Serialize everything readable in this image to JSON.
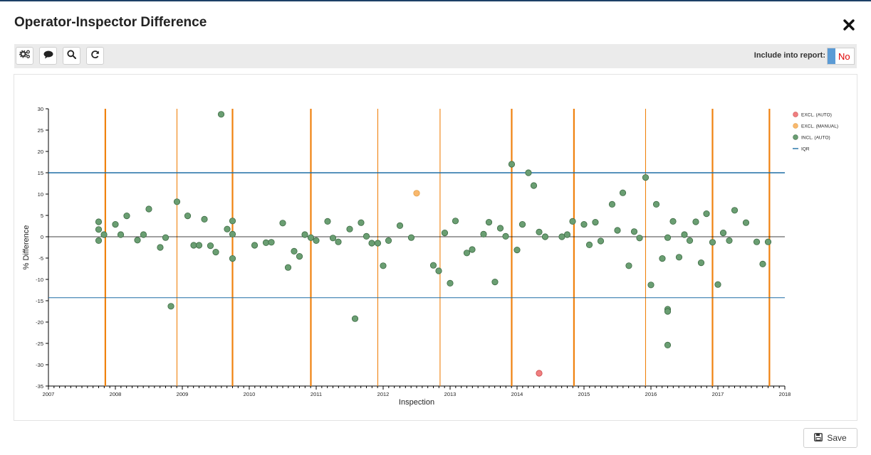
{
  "dialog": {
    "title": "Operator-Inspector Difference",
    "close_icon": "close-icon"
  },
  "toolbar": {
    "buttons": [
      {
        "icon": "settings-icon"
      },
      {
        "icon": "comment-icon"
      },
      {
        "icon": "search-icon"
      },
      {
        "icon": "refresh-icon"
      }
    ],
    "report_label": "Include into report:",
    "report_value": "No"
  },
  "footer": {
    "save_label": "Save",
    "save_icon": "floppy-disk-icon"
  },
  "colors": {
    "excl_auto": "#f07f80",
    "excl_manual": "#f9b86d",
    "incl_auto": "#6a9e72",
    "iqr": "#1f6ea5",
    "vline": "#f0820f"
  },
  "chart_data": {
    "type": "scatter",
    "xlabel": "Inspection",
    "ylabel": "% Difference",
    "xlim": [
      2007,
      2018
    ],
    "ylim": [
      -35,
      30
    ],
    "x_ticks": [
      "2007",
      "2008",
      "2009",
      "2010",
      "2011",
      "2012",
      "2013",
      "2014",
      "2015",
      "2016",
      "2017",
      "2018"
    ],
    "y_ticks": [
      30,
      25,
      20,
      15,
      10,
      5,
      0,
      -5,
      -10,
      -15,
      -20,
      -25,
      -30,
      -35
    ],
    "iqr": {
      "upper": 15,
      "lower": -14.3
    },
    "vertical_lines": [
      {
        "x": 2007.85,
        "weight": "thick"
      },
      {
        "x": 2008.92,
        "weight": "thin"
      },
      {
        "x": 2009.75,
        "weight": "thick"
      },
      {
        "x": 2010.92,
        "weight": "thick"
      },
      {
        "x": 2011.92,
        "weight": "thin"
      },
      {
        "x": 2012.85,
        "weight": "thin"
      },
      {
        "x": 2013.92,
        "weight": "thick"
      },
      {
        "x": 2014.85,
        "weight": "thick"
      },
      {
        "x": 2015.92,
        "weight": "thin"
      },
      {
        "x": 2016.92,
        "weight": "thick"
      },
      {
        "x": 2017.77,
        "weight": "thick"
      }
    ],
    "legend_position": "top-right",
    "series": [
      {
        "name": "EXCL. (AUTO)",
        "points": [
          [
            2014.33,
            -32
          ]
        ]
      },
      {
        "name": "EXCL. (MANUAL)",
        "points": [
          [
            2012.5,
            10.2
          ]
        ]
      },
      {
        "name": "INCL. (AUTO)",
        "points": [
          [
            2007.75,
            3.5
          ],
          [
            2007.75,
            1.7
          ],
          [
            2007.75,
            -0.9
          ],
          [
            2007.83,
            0.5
          ],
          [
            2008.0,
            2.9
          ],
          [
            2008.08,
            0.5
          ],
          [
            2008.17,
            4.9
          ],
          [
            2008.33,
            -0.8
          ],
          [
            2008.42,
            0.5
          ],
          [
            2008.5,
            6.5
          ],
          [
            2008.67,
            -2.5
          ],
          [
            2008.75,
            -0.2
          ],
          [
            2008.83,
            -16.3
          ],
          [
            2008.92,
            8.2
          ],
          [
            2009.08,
            4.9
          ],
          [
            2009.17,
            -2.0
          ],
          [
            2009.25,
            -2.0
          ],
          [
            2009.33,
            4.1
          ],
          [
            2009.42,
            -2.1
          ],
          [
            2009.5,
            -3.6
          ],
          [
            2009.58,
            28.7
          ],
          [
            2009.67,
            1.8
          ],
          [
            2009.75,
            3.7
          ],
          [
            2009.75,
            0.6
          ],
          [
            2009.75,
            -5.1
          ],
          [
            2010.08,
            -2.0
          ],
          [
            2010.25,
            -1.4
          ],
          [
            2010.33,
            -1.3
          ],
          [
            2010.5,
            3.2
          ],
          [
            2010.58,
            -7.2
          ],
          [
            2010.67,
            -3.4
          ],
          [
            2010.75,
            -4.6
          ],
          [
            2010.83,
            0.5
          ],
          [
            2010.92,
            -0.2
          ],
          [
            2011.0,
            -0.9
          ],
          [
            2011.17,
            3.6
          ],
          [
            2011.25,
            -0.3
          ],
          [
            2011.33,
            -1.2
          ],
          [
            2011.5,
            1.8
          ],
          [
            2011.58,
            -19.2
          ],
          [
            2011.67,
            3.3
          ],
          [
            2011.75,
            0.1
          ],
          [
            2011.83,
            -1.5
          ],
          [
            2011.92,
            -1.5
          ],
          [
            2012.0,
            -6.8
          ],
          [
            2012.08,
            -0.9
          ],
          [
            2012.25,
            2.6
          ],
          [
            2012.42,
            -0.2
          ],
          [
            2012.75,
            -6.7
          ],
          [
            2012.83,
            -8.0
          ],
          [
            2012.92,
            0.9
          ],
          [
            2013.0,
            -10.9
          ],
          [
            2013.08,
            3.7
          ],
          [
            2013.25,
            -3.8
          ],
          [
            2013.33,
            -3.0
          ],
          [
            2013.5,
            0.6
          ],
          [
            2013.58,
            3.4
          ],
          [
            2013.67,
            -10.6
          ],
          [
            2013.75,
            2.0
          ],
          [
            2013.83,
            0.1
          ],
          [
            2013.92,
            17.0
          ],
          [
            2014.0,
            -3.1
          ],
          [
            2014.08,
            2.9
          ],
          [
            2014.17,
            15.0
          ],
          [
            2014.25,
            12.0
          ],
          [
            2014.33,
            1.1
          ],
          [
            2014.42,
            0.0
          ],
          [
            2014.67,
            0.0
          ],
          [
            2014.75,
            0.5
          ],
          [
            2014.83,
            3.6
          ],
          [
            2015.0,
            2.9
          ],
          [
            2015.08,
            -1.9
          ],
          [
            2015.17,
            3.4
          ],
          [
            2015.25,
            -1.0
          ],
          [
            2015.42,
            7.6
          ],
          [
            2015.58,
            10.3
          ],
          [
            2015.5,
            1.5
          ],
          [
            2015.67,
            -6.8
          ],
          [
            2015.75,
            1.2
          ],
          [
            2015.83,
            -0.3
          ],
          [
            2015.92,
            13.9
          ],
          [
            2016.0,
            -11.3
          ],
          [
            2016.08,
            7.6
          ],
          [
            2016.17,
            -5.1
          ],
          [
            2016.25,
            -0.2
          ],
          [
            2016.25,
            -17.0
          ],
          [
            2016.25,
            -17.5
          ],
          [
            2016.25,
            -25.4
          ],
          [
            2016.33,
            3.6
          ],
          [
            2016.42,
            -4.8
          ],
          [
            2016.5,
            0.5
          ],
          [
            2016.58,
            -0.9
          ],
          [
            2016.67,
            3.5
          ],
          [
            2016.75,
            -6.1
          ],
          [
            2016.83,
            5.4
          ],
          [
            2016.92,
            -1.3
          ],
          [
            2017.0,
            -11.2
          ],
          [
            2017.08,
            0.9
          ],
          [
            2017.17,
            -0.9
          ],
          [
            2017.25,
            6.2
          ],
          [
            2017.42,
            3.3
          ],
          [
            2017.58,
            -1.2
          ],
          [
            2017.67,
            -6.4
          ],
          [
            2017.75,
            -1.2
          ]
        ]
      },
      {
        "name": "IQR",
        "points": []
      }
    ]
  }
}
